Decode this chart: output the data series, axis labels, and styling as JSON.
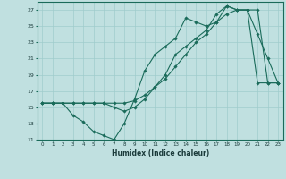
{
  "xlabel": "Humidex (Indice chaleur)",
  "xlim": [
    -0.5,
    23.5
  ],
  "ylim": [
    11,
    28
  ],
  "yticks": [
    11,
    13,
    15,
    17,
    19,
    21,
    23,
    25,
    27
  ],
  "xticks": [
    0,
    1,
    2,
    3,
    4,
    5,
    6,
    7,
    8,
    9,
    10,
    11,
    12,
    13,
    14,
    15,
    16,
    17,
    18,
    19,
    20,
    21,
    22,
    23
  ],
  "bg_color": "#c0e0e0",
  "grid_color": "#a0cccc",
  "line_color": "#1a6b5a",
  "line1_x": [
    0,
    1,
    2,
    3,
    4,
    5,
    6,
    7,
    8,
    9,
    10,
    11,
    12,
    13,
    14,
    15,
    16,
    17,
    18,
    19,
    20,
    21,
    22,
    23
  ],
  "line1_y": [
    15.5,
    15.5,
    15.5,
    14,
    13.2,
    12,
    11.5,
    11,
    13,
    16,
    19.5,
    21.5,
    22.5,
    23.5,
    26,
    25.5,
    25,
    25.5,
    27.5,
    27,
    27,
    24,
    21,
    18
  ],
  "line2_x": [
    0,
    1,
    2,
    3,
    4,
    5,
    6,
    7,
    8,
    9,
    10,
    11,
    12,
    13,
    14,
    15,
    16,
    17,
    18,
    19,
    20,
    21,
    22,
    23
  ],
  "line2_y": [
    15.5,
    15.5,
    15.5,
    15.5,
    15.5,
    15.5,
    15.5,
    15,
    14.5,
    15,
    16,
    17.5,
    19,
    21.5,
    22.5,
    23.5,
    24.5,
    26.5,
    27.5,
    27,
    27,
    27,
    18,
    18
  ],
  "line3_x": [
    0,
    1,
    2,
    3,
    4,
    5,
    6,
    7,
    8,
    9,
    10,
    11,
    12,
    13,
    14,
    15,
    16,
    17,
    18,
    19,
    20,
    21,
    22,
    23
  ],
  "line3_y": [
    15.5,
    15.5,
    15.5,
    15.5,
    15.5,
    15.5,
    15.5,
    15.5,
    15.5,
    15.8,
    16.5,
    17.5,
    18.5,
    20,
    21.5,
    23,
    24,
    25.5,
    26.5,
    27,
    27,
    18,
    18,
    18
  ]
}
